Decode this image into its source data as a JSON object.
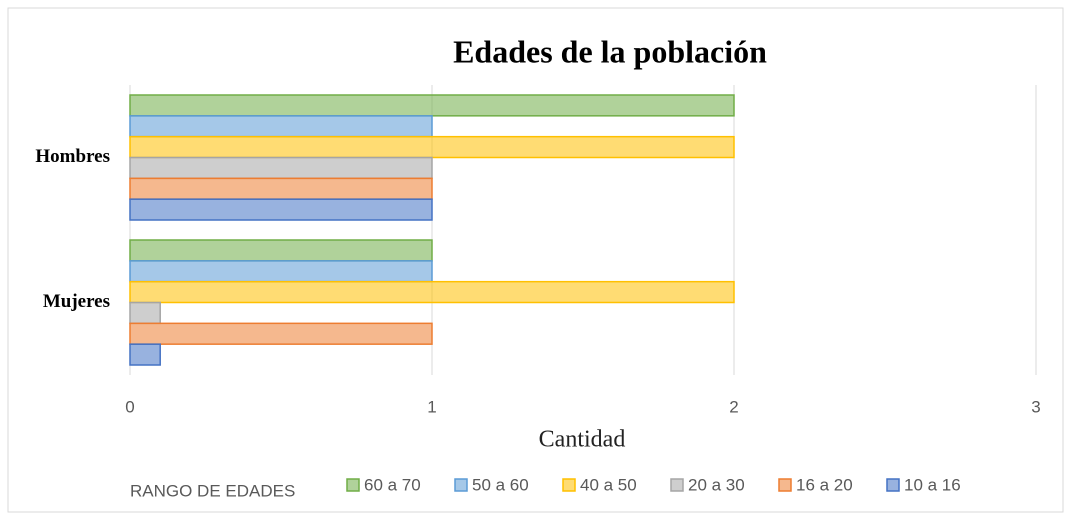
{
  "chart_data": {
    "type": "bar",
    "orientation": "horizontal",
    "title": "Edades de la población",
    "x_label": "Cantidad",
    "legend_title": "RANGO DE EDADES",
    "categories": [
      "Hombres",
      "Mujeres"
    ],
    "series": [
      {
        "name": "60 a 70",
        "color": "#70ad47",
        "values": [
          2,
          1
        ]
      },
      {
        "name": "50 a 60",
        "color": "#5b9bd5",
        "values": [
          1,
          1
        ]
      },
      {
        "name": "40 a 50",
        "color": "#ffc000",
        "values": [
          2,
          2
        ]
      },
      {
        "name": "20 a 30",
        "color": "#a5a5a5",
        "values": [
          1,
          0.1
        ]
      },
      {
        "name": "16 a 20",
        "color": "#ed7d31",
        "values": [
          1,
          1
        ]
      },
      {
        "name": "10 a 16",
        "color": "#4472c4",
        "values": [
          1,
          0.1
        ]
      }
    ],
    "xlim": [
      0,
      3
    ],
    "xticks": [
      0,
      1,
      2,
      3
    ],
    "grid": true,
    "legend": "bottom"
  }
}
